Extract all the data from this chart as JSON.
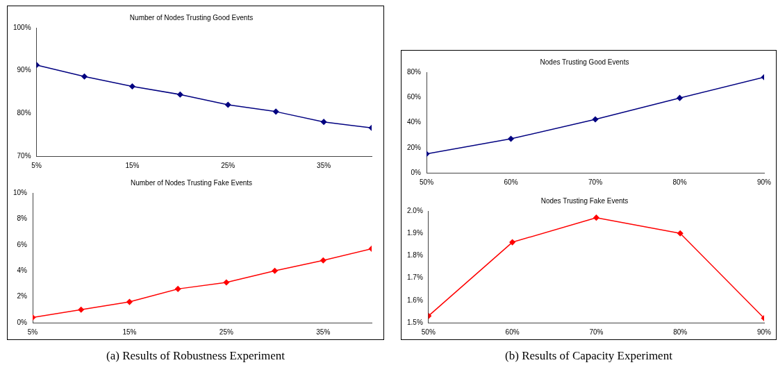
{
  "chart_data": [
    {
      "type": "line",
      "title": "Number of Nodes Trusting Good Events",
      "x": [
        5,
        10,
        15,
        20,
        25,
        30,
        35,
        40
      ],
      "series": [
        {
          "color": "#000080",
          "values": [
            91.3,
            88.6,
            86.3,
            84.4,
            82.0,
            80.4,
            78.0,
            76.6
          ]
        }
      ],
      "xlim": [
        5,
        40
      ],
      "xticks": [
        {
          "value": 5,
          "label": "5%"
        },
        {
          "value": 15,
          "label": "15%"
        },
        {
          "value": 25,
          "label": "25%"
        },
        {
          "value": 35,
          "label": "35%"
        }
      ],
      "ylim": [
        70,
        100
      ],
      "yticks": [
        {
          "value": 70,
          "label": "70%"
        },
        {
          "value": 80,
          "label": "80%"
        },
        {
          "value": 90,
          "label": "90%"
        },
        {
          "value": 100,
          "label": "100%"
        }
      ],
      "grid": false,
      "legend": false,
      "marker": "diamond"
    },
    {
      "type": "line",
      "title": "Number of Nodes Trusting Fake Events",
      "x": [
        5,
        10,
        15,
        20,
        25,
        30,
        35,
        40
      ],
      "series": [
        {
          "color": "#ff0000",
          "values": [
            0.4,
            1.0,
            1.6,
            2.6,
            3.1,
            4.0,
            4.8,
            5.7
          ]
        }
      ],
      "xlim": [
        5,
        40
      ],
      "xticks": [
        {
          "value": 5,
          "label": "5%"
        },
        {
          "value": 15,
          "label": "15%"
        },
        {
          "value": 25,
          "label": "25%"
        },
        {
          "value": 35,
          "label": "35%"
        }
      ],
      "ylim": [
        0,
        10
      ],
      "yticks": [
        {
          "value": 0,
          "label": "0%"
        },
        {
          "value": 2,
          "label": "2%"
        },
        {
          "value": 4,
          "label": "4%"
        },
        {
          "value": 6,
          "label": "6%"
        },
        {
          "value": 8,
          "label": "8%"
        },
        {
          "value": 10,
          "label": "10%"
        }
      ],
      "grid": false,
      "legend": false,
      "marker": "diamond",
      "annotations": [
        "(a) Results of Robustness Experiment"
      ]
    },
    {
      "type": "line",
      "title": "Nodes Trusting Good Events",
      "x": [
        50,
        60,
        70,
        80,
        90
      ],
      "series": [
        {
          "color": "#000080",
          "values": [
            15,
            27,
            42.5,
            59.5,
            76
          ]
        }
      ],
      "xlim": [
        50,
        90
      ],
      "xticks": [
        {
          "value": 50,
          "label": "50%"
        },
        {
          "value": 60,
          "label": "60%"
        },
        {
          "value": 70,
          "label": "70%"
        },
        {
          "value": 80,
          "label": "80%"
        },
        {
          "value": 90,
          "label": "90%"
        }
      ],
      "ylim": [
        0,
        80
      ],
      "yticks": [
        {
          "value": 0,
          "label": "0%"
        },
        {
          "value": 20,
          "label": "20%"
        },
        {
          "value": 40,
          "label": "40%"
        },
        {
          "value": 60,
          "label": "60%"
        },
        {
          "value": 80,
          "label": "80%"
        }
      ],
      "grid": false,
      "legend": false,
      "marker": "diamond"
    },
    {
      "type": "line",
      "title": "Nodes Trusting Fake Events",
      "x": [
        50,
        60,
        70,
        80,
        90
      ],
      "series": [
        {
          "color": "#ff0000",
          "values": [
            1.53,
            1.86,
            1.97,
            1.9,
            1.52
          ]
        }
      ],
      "xlim": [
        50,
        90
      ],
      "xticks": [
        {
          "value": 50,
          "label": "50%"
        },
        {
          "value": 60,
          "label": "60%"
        },
        {
          "value": 70,
          "label": "70%"
        },
        {
          "value": 80,
          "label": "80%"
        },
        {
          "value": 90,
          "label": "90%"
        }
      ],
      "ylim": [
        1.5,
        2.0
      ],
      "yticks": [
        {
          "value": 1.5,
          "label": "1.5%"
        },
        {
          "value": 1.6,
          "label": "1.6%"
        },
        {
          "value": 1.7,
          "label": "1.7%"
        },
        {
          "value": 1.8,
          "label": "1.8%"
        },
        {
          "value": 1.9,
          "label": "1.9%"
        },
        {
          "value": 2.0,
          "label": "2.0%"
        }
      ],
      "grid": false,
      "legend": false,
      "marker": "diamond",
      "annotations": [
        "(b) Results of Capacity Experiment"
      ]
    }
  ]
}
